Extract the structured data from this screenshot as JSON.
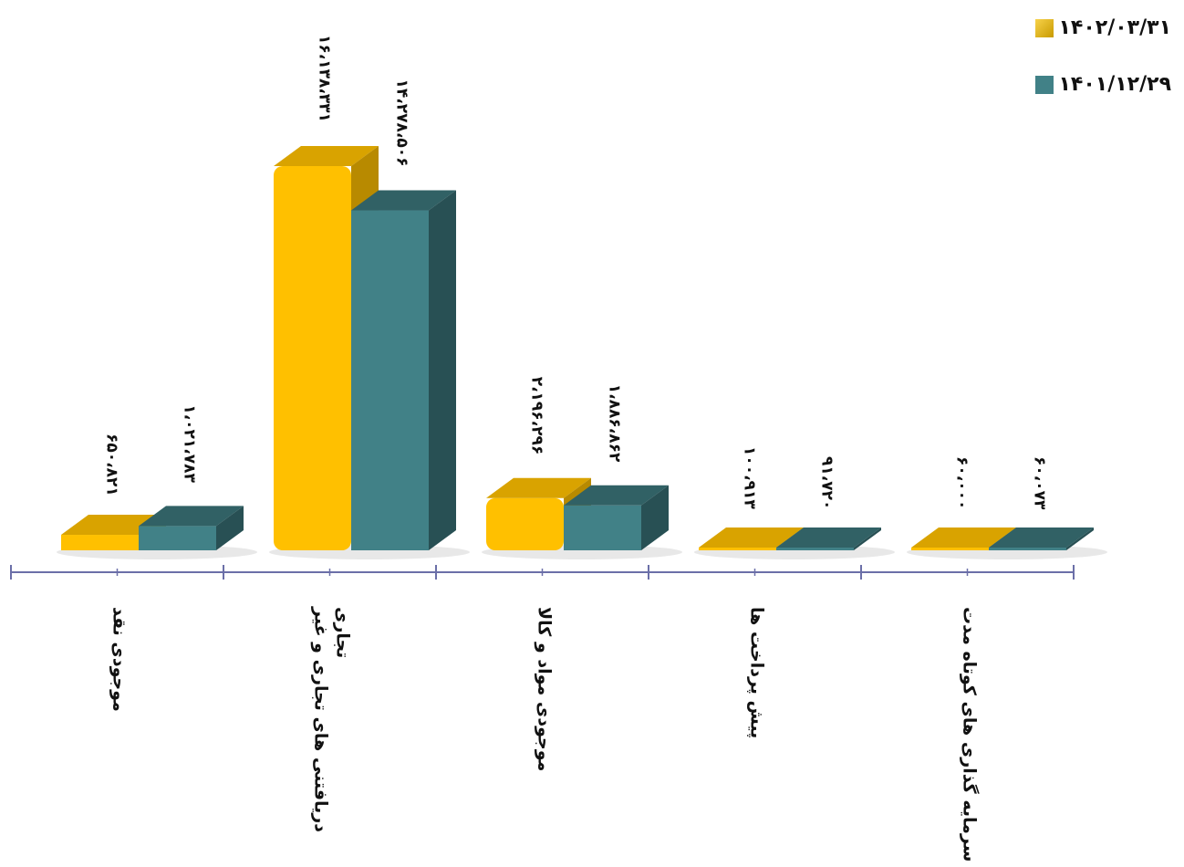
{
  "chart_data": {
    "type": "bar",
    "categories": [
      "موجودی نقد",
      "دریافتنی های تجاری و غیر تجاری",
      "موجودی مواد و کالا",
      "پیش پرداخت ها",
      "سرمایه گذاری های کوتاه مدت"
    ],
    "series": [
      {
        "name": "۱۴۰۲/۰۳/۳۱",
        "color": "#FFC000",
        "values": [
          650821,
          16138331,
          2196296,
          100913,
          60000
        ],
        "labels": [
          "۶۵۰،۸۲۱",
          "۱۶،۱۳۸،۳۳۱",
          "۲،۱۹۶،۲۹۶",
          "۱۰۰،۹۱۳",
          "۶۰،۰۰۰"
        ]
      },
      {
        "name": "۱۴۰۱/۱۲/۲۹",
        "color": "#418187",
        "values": [
          1021783,
          14278506,
          1886862,
          91720,
          60073
        ],
        "labels": [
          "۱،۰۲۱،۷۸۳",
          "۱۴،۲۷۸،۵۰۶",
          "۱،۸۸۶،۸۶۲",
          "۹۱،۷۲۰",
          "۶۰،۰۷۳"
        ]
      }
    ],
    "legend_position": "top-right",
    "grid": false,
    "ylim": [
      0,
      16138331
    ]
  }
}
